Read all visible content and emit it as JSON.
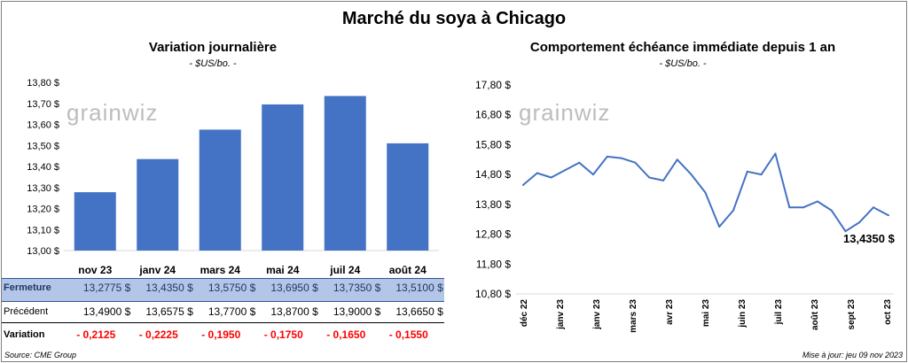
{
  "title": "Marché du soya à Chicago",
  "watermark": "grainwiz",
  "left_chart": {
    "title": "Variation journalière",
    "unit": "- $US/bo. -"
  },
  "right_chart": {
    "title": "Comportement échéance immédiate depuis 1 an",
    "unit": "- $US/bo. -",
    "last_value_label": "13,4350 $"
  },
  "table": {
    "rows": [
      {
        "label": "Fermeture",
        "values": [
          "13,2775 $",
          "13,4350 $",
          "13,5750 $",
          "13,6950 $",
          "13,7350 $",
          "13,5100 $"
        ]
      },
      {
        "label": "Précédent",
        "values": [
          "13,4900 $",
          "13,6575 $",
          "13,7700 $",
          "13,8700 $",
          "13,9000 $",
          "13,6650 $"
        ]
      },
      {
        "label": "Variation",
        "values": [
          "- 0,2125",
          "- 0,2225",
          "- 0,1950",
          "- 0,1750",
          "- 0,1650",
          "- 0,1550"
        ]
      }
    ]
  },
  "footer": {
    "source": "Source: CME Group",
    "updated": "Mise à jour: jeu 09 nov 2023"
  },
  "colors": {
    "bar": "#4472c4",
    "line": "#4472c4",
    "fermeture_bg": "#b4c6e7",
    "negative": "#ff0000",
    "grid": "#d9d9d9"
  },
  "chart_data": [
    {
      "type": "bar",
      "title": "Variation journalière",
      "categories": [
        "nov 23",
        "janv 24",
        "mars 24",
        "mai 24",
        "juil 24",
        "août 24"
      ],
      "values": [
        13.2775,
        13.435,
        13.575,
        13.695,
        13.735,
        13.51
      ],
      "ylim": [
        13.0,
        13.8
      ],
      "yticks": [
        "13,00 $",
        "13,10 $",
        "13,20 $",
        "13,30 $",
        "13,40 $",
        "13,50 $",
        "13,60 $",
        "13,70 $",
        "13,80 $"
      ],
      "grid": false
    },
    {
      "type": "line",
      "title": "Comportement échéance immédiate depuis 1 an",
      "x": [
        "2022-11-09",
        "2022-11-23",
        "2022-12-07",
        "2022-12-21",
        "2023-01-04",
        "2023-01-18",
        "2023-02-01",
        "2023-02-15",
        "2023-03-01",
        "2023-03-15",
        "2023-03-29",
        "2023-04-12",
        "2023-04-26",
        "2023-05-10",
        "2023-05-24",
        "2023-06-07",
        "2023-06-21",
        "2023-07-05",
        "2023-07-19",
        "2023-08-02",
        "2023-08-16",
        "2023-08-30",
        "2023-09-13",
        "2023-09-27",
        "2023-10-11",
        "2023-10-25",
        "2023-11-09"
      ],
      "values": [
        14.45,
        14.85,
        14.7,
        14.95,
        15.2,
        14.8,
        15.4,
        15.35,
        15.2,
        14.7,
        14.6,
        15.3,
        14.8,
        14.2,
        13.05,
        13.6,
        14.9,
        14.8,
        15.5,
        13.7,
        13.7,
        13.9,
        13.6,
        12.9,
        13.2,
        13.7,
        13.435
      ],
      "xtick_labels": [
        "déc 22",
        "janv 23",
        "janv 23",
        "mars 23",
        "avr 23",
        "mai 23",
        "juin 23",
        "juil 23",
        "août 23",
        "sept 23",
        "oct 23"
      ],
      "ylim": [
        10.8,
        17.8
      ],
      "yticks": [
        "10,80 $",
        "11,80 $",
        "12,80 $",
        "13,80 $",
        "14,80 $",
        "15,80 $",
        "16,80 $",
        "17,80 $"
      ],
      "grid": false
    }
  ]
}
